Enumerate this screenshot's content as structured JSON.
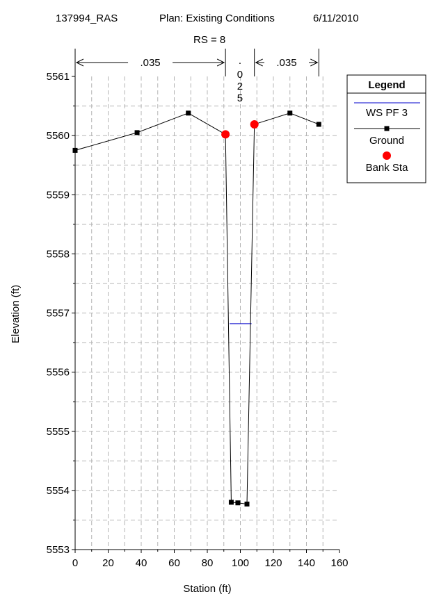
{
  "header": {
    "project": "137994_RAS",
    "plan": "Plan: Existing Conditions",
    "date": "6/11/2010",
    "section": "RS = 8"
  },
  "chart_data": {
    "type": "line",
    "xlabel": "Station (ft)",
    "ylabel": "Elevation (ft)",
    "xlim": [
      0,
      160
    ],
    "ylim": [
      5553,
      5561
    ],
    "xticks": [
      "0",
      "20",
      "40",
      "60",
      "80",
      "100",
      "120",
      "140",
      "160"
    ],
    "yticks": [
      "5553",
      "5554",
      "5555",
      "5556",
      "5557",
      "5558",
      "5559",
      "5560",
      "5561"
    ],
    "grid": true,
    "legend_position": "right",
    "legend_title": "Legend",
    "series": [
      {
        "name": "WS PF 3",
        "type": "line",
        "color": "#0000cc",
        "x": [
          93.5,
          106.8
        ],
        "y": [
          5556.82,
          5556.82
        ]
      },
      {
        "name": "Ground",
        "type": "line-marker",
        "color": "#000000",
        "x": [
          0,
          37.5,
          68.5,
          91,
          94.5,
          98.5,
          104,
          108.5,
          130,
          147.5
        ],
        "y": [
          5559.75,
          5560.05,
          5560.38,
          5560.02,
          5553.8,
          5553.79,
          5553.77,
          5560.19,
          5560.38,
          5560.19
        ]
      },
      {
        "name": "Bank Sta",
        "type": "scatter",
        "color": "#ff0000",
        "x": [
          91,
          108.5
        ],
        "y": [
          5560.02,
          5560.19
        ]
      }
    ],
    "annotations": {
      "roughness": [
        {
          "label": ".035",
          "x_start": 0,
          "x_end": 91
        },
        {
          "label": "0\n2\n5",
          "prefix": ".",
          "x_start": 91,
          "x_end": 108.5
        },
        {
          "label": ".035",
          "x_start": 108.5,
          "x_end": 147.5
        }
      ]
    }
  }
}
